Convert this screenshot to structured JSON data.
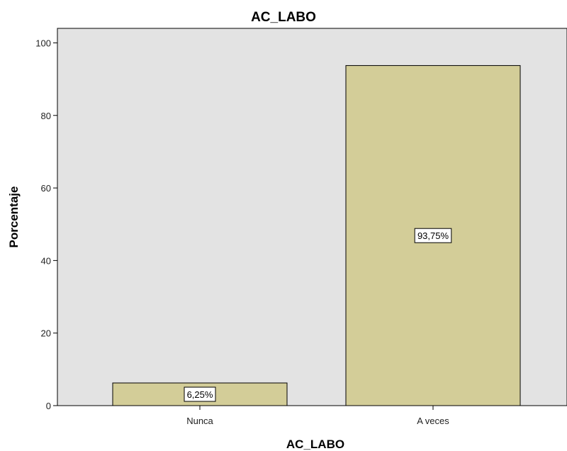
{
  "chart_data": {
    "type": "bar",
    "title": "AC_LABO",
    "xlabel": "AC_LABO",
    "ylabel": "Porcentaje",
    "categories": [
      "Nunca",
      "A veces"
    ],
    "values": [
      6.25,
      93.75
    ],
    "data_labels": [
      "6,25%",
      "93,75%"
    ],
    "ylim": [
      0,
      104
    ],
    "yticks": [
      0,
      20,
      40,
      60,
      80,
      100
    ],
    "grid": false,
    "legend": "none",
    "colors": {
      "bar_fill": "#d3cd98",
      "bar_stroke": "#000000",
      "plot_background": "#e3e3e3"
    }
  }
}
